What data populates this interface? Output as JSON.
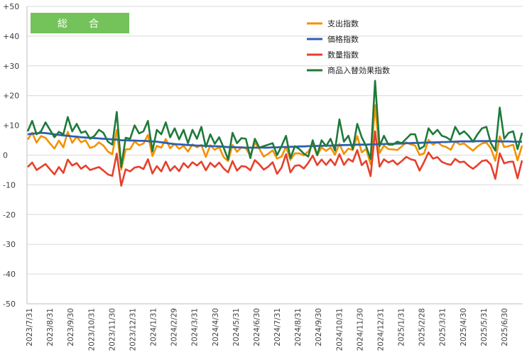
{
  "chart_data": {
    "type": "line",
    "badge_label": "総　合",
    "y_ticks": [
      "+50",
      "+40",
      "+30",
      "+20",
      "+10",
      "0",
      "-10",
      "-20",
      "-30",
      "-40",
      "-50"
    ],
    "ylim": [
      -50,
      50
    ],
    "grid": "horizontal",
    "legend_position": "top-right",
    "x_tick_labels": [
      "2023/7/31",
      "2023/8/31",
      "2023/9/30",
      "2023/10/31",
      "2023/11/30",
      "2023/12/31",
      "2024/1/31",
      "2024/2/29",
      "2024/3/31",
      "2024/4/30",
      "2024/5/31",
      "2024/6/30",
      "2024/7/31",
      "2024/8/31",
      "2024/9/30",
      "2024/10/31",
      "2024/11/30",
      "2024/12/31",
      "2025/1/31",
      "2025/2/28",
      "2025/3/31",
      "2025/4/30",
      "2025/5/31",
      "2025/6/30"
    ],
    "series": [
      {
        "name": "支出指数",
        "color": "#F39200",
        "values": [
          5.2,
          7.5,
          4.2,
          6.4,
          5.8,
          3.9,
          2.2,
          4.9,
          2.6,
          7.8,
          4.1,
          6.2,
          4.3,
          5.0,
          2.4,
          2.9,
          4.3,
          3.2,
          1.2,
          0.3,
          8.5,
          -4.9,
          1.9,
          2.0,
          4.6,
          3.3,
          3.9,
          6.8,
          -0.3,
          3.1,
          2.5,
          5.4,
          2.3,
          3.8,
          2.1,
          3.1,
          1.2,
          3.6,
          2.6,
          3.4,
          -0.6,
          3.3,
          1.8,
          2.7,
          -0.7,
          -2.0,
          3.4,
          1.1,
          2.6,
          2.3,
          -0.2,
          4.2,
          2.1,
          -0.5,
          0.4,
          1.6,
          -1.2,
          -0.5,
          2.8,
          -1.6,
          0.6,
          0.6,
          -0.1,
          1.2,
          3.7,
          -0.1,
          2.6,
          1.4,
          2.6,
          0.1,
          3.8,
          0.4,
          2.2,
          1.7,
          6.4,
          0.9,
          2.1,
          -3.1,
          16.8,
          0.7,
          3.2,
          2.0,
          1.9,
          1.7,
          2.9,
          4.3,
          3.6,
          3.2,
          0.0,
          0.6,
          5.1,
          3.5,
          4.4,
          3.2,
          2.7,
          1.8,
          4.6,
          3.6,
          3.9,
          2.6,
          1.5,
          2.9,
          3.9,
          4.2,
          2.3,
          -1.9,
          6.3,
          2.7,
          3.0,
          3.5,
          -1.8,
          3.2
        ]
      },
      {
        "name": "価格指数",
        "color": "#2E5FB5",
        "values": [
          7.0,
          7.2,
          7.3,
          7.5,
          7.4,
          7.2,
          7.0,
          6.8,
          6.6,
          6.5,
          6.3,
          6.2,
          6.0,
          5.9,
          5.8,
          5.7,
          5.6,
          5.5,
          5.4,
          5.3,
          5.2,
          5.0,
          5.0,
          4.9,
          4.9,
          4.8,
          4.8,
          4.7,
          4.6,
          4.5,
          4.3,
          4.1,
          3.9,
          3.7,
          3.6,
          3.5,
          3.4,
          3.3,
          3.2,
          3.2,
          3.1,
          3.0,
          3.0,
          2.9,
          2.8,
          2.7,
          2.7,
          2.6,
          2.6,
          2.5,
          2.5,
          2.5,
          2.5,
          2.5,
          2.5,
          2.6,
          2.6,
          2.7,
          2.7,
          2.8,
          2.8,
          2.9,
          2.9,
          3.0,
          3.0,
          3.1,
          3.1,
          3.2,
          3.2,
          3.3,
          3.3,
          3.4,
          3.4,
          3.4,
          3.5,
          3.5,
          3.5,
          3.6,
          3.6,
          3.7,
          3.7,
          3.8,
          3.8,
          3.9,
          3.9,
          4.0,
          4.0,
          4.1,
          4.1,
          4.2,
          4.2,
          4.3,
          4.3,
          4.4,
          4.4,
          4.5,
          4.5,
          4.6,
          4.6,
          4.6,
          4.6,
          4.7,
          4.7,
          4.7,
          4.7,
          4.7,
          4.6,
          4.6,
          4.6,
          4.5,
          4.5,
          4.5
        ]
      },
      {
        "name": "数量指数",
        "color": "#E6402C",
        "values": [
          -4.0,
          -2.5,
          -5.0,
          -4.0,
          -3.0,
          -4.8,
          -6.5,
          -4.0,
          -6.0,
          -1.5,
          -3.5,
          -2.7,
          -4.6,
          -3.5,
          -5.0,
          -4.5,
          -4.0,
          -5.2,
          -6.5,
          -7.0,
          0.5,
          -10.3,
          -4.8,
          -5.5,
          -4.2,
          -3.9,
          -4.7,
          -1.4,
          -6.2,
          -3.7,
          -5.5,
          -2.2,
          -5.3,
          -3.7,
          -5.4,
          -2.7,
          -4.2,
          -2.4,
          -3.5,
          -2.2,
          -5.1,
          -2.6,
          -4.0,
          -2.5,
          -4.5,
          -5.8,
          -2.0,
          -5.2,
          -3.7,
          -3.9,
          -5.1,
          -1.7,
          -3.1,
          -4.9,
          -3.9,
          -2.4,
          -6.3,
          -4.2,
          0.3,
          -5.8,
          -3.6,
          -3.4,
          -4.5,
          -2.6,
          -0.2,
          -3.4,
          -1.5,
          -3.3,
          -1.4,
          -3.4,
          0.3,
          -3.3,
          -1.3,
          -2.2,
          1.7,
          -3.4,
          -1.9,
          -7.1,
          8.0,
          -3.9,
          -1.4,
          -2.5,
          -1.8,
          -3.2,
          -2.0,
          -0.6,
          -1.4,
          -1.8,
          -5.2,
          -2.3,
          0.9,
          -1.2,
          -0.7,
          -2.3,
          -2.9,
          -3.3,
          -1.3,
          -2.4,
          -2.2,
          -3.6,
          -4.6,
          -3.4,
          -2.0,
          -1.7,
          -3.2,
          -8.0,
          0.6,
          -2.8,
          -2.3,
          -2.2,
          -7.8,
          -1.8
        ]
      },
      {
        "name": "商品入替効果指数",
        "color": "#1F7A3A",
        "values": [
          8.0,
          11.5,
          7.0,
          8.0,
          11.0,
          8.5,
          6.0,
          7.8,
          7.0,
          12.8,
          8.0,
          10.5,
          7.5,
          8.0,
          5.5,
          6.5,
          8.5,
          7.5,
          4.5,
          3.5,
          14.5,
          -4.0,
          5.8,
          5.5,
          10.0,
          7.3,
          8.0,
          11.5,
          1.3,
          8.5,
          7.0,
          11.0,
          6.0,
          9.0,
          5.3,
          8.5,
          4.0,
          8.5,
          5.5,
          9.5,
          2.7,
          7.0,
          3.8,
          6.0,
          2.5,
          -1.5,
          7.5,
          4.0,
          5.7,
          5.5,
          -1.0,
          5.5,
          2.5,
          3.0,
          3.5,
          4.0,
          0.0,
          3.0,
          6.5,
          -1.0,
          3.0,
          2.0,
          0.5,
          -0.5,
          5.0,
          0.0,
          5.0,
          3.0,
          5.5,
          1.5,
          12.0,
          4.5,
          6.5,
          2.0,
          10.5,
          6.0,
          3.0,
          -1.3,
          25.0,
          3.0,
          6.5,
          3.5,
          3.5,
          4.5,
          4.0,
          5.5,
          7.0,
          7.0,
          2.0,
          3.0,
          9.0,
          7.0,
          8.5,
          6.5,
          6.0,
          5.0,
          9.5,
          7.0,
          8.0,
          6.5,
          4.5,
          7.0,
          9.0,
          9.5,
          4.0,
          1.5,
          16.0,
          5.5,
          7.5,
          8.0,
          2.0,
          7.5
        ]
      }
    ]
  }
}
